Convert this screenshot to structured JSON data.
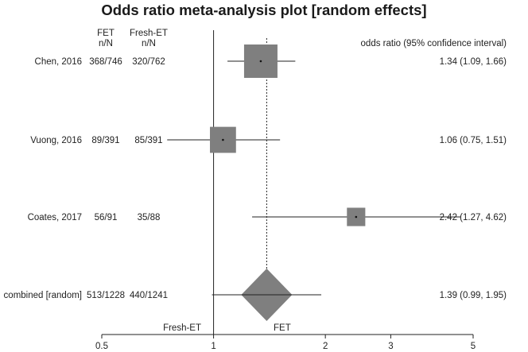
{
  "chart_data": {
    "type": "forest",
    "title": "Odds ratio meta-analysis plot [random effects]",
    "headers": {
      "group1": "FET",
      "group1_sub": "n/N",
      "group2": "Fresh-ET",
      "group2_sub": "n/N",
      "effect": "odds ratio (95% confidence interval)"
    },
    "studies": [
      {
        "label": "Chen, 2016",
        "group1": "368/746",
        "group2": "320/762",
        "or": 1.34,
        "lo": 1.09,
        "hi": 1.66,
        "ci_text": "1.34 (1.09, 1.66)",
        "weight": 1.0
      },
      {
        "label": "Vuong, 2016",
        "group1": "89/391",
        "group2": "85/391",
        "or": 1.06,
        "lo": 0.75,
        "hi": 1.51,
        "ci_text": "1.06 (0.75, 1.51)",
        "weight": 0.78
      },
      {
        "label": "Coates, 2017",
        "group1": "56/91",
        "group2": "35/88",
        "or": 2.42,
        "lo": 1.27,
        "hi": 4.62,
        "ci_text": "2.42 (1.27, 4.62)",
        "weight": 0.55
      }
    ],
    "combined": {
      "label": "combined [random]",
      "group1": "513/1228",
      "group2": "440/1241",
      "or": 1.39,
      "lo": 0.99,
      "hi": 1.95,
      "ci_text": "1.39 (0.99, 1.95)"
    },
    "x_scale": "log",
    "xlim": [
      0.5,
      5
    ],
    "ticks": [
      0.5,
      1,
      2,
      3,
      5
    ],
    "tick_labels": [
      "0.5",
      "1",
      "2",
      "3",
      "5"
    ],
    "left_label": "Fresh-ET",
    "right_label": "FET",
    "colors": {
      "box": "#7f7f7f",
      "line": "#222222"
    }
  }
}
